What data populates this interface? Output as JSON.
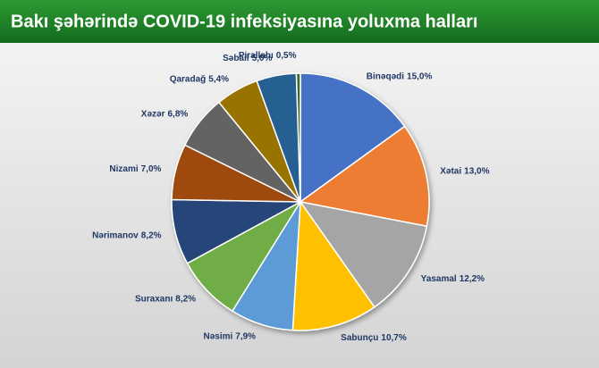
{
  "chart_data": {
    "type": "pie",
    "title": "Bakı şəhərində COVID-19 infeksiyasına yoluxma halları",
    "categories": [
      "Binəqədi",
      "Xətai",
      "Yasamal",
      "Sabunçu",
      "Nəsimi",
      "Suraxanı",
      "Nərimanov",
      "Nizami",
      "Xəzər",
      "Qaradağ",
      "Səbail",
      "Pirallahı"
    ],
    "values": [
      15.0,
      13.0,
      12.2,
      10.7,
      7.9,
      8.2,
      8.2,
      7.0,
      6.8,
      5.4,
      5.0,
      0.5
    ],
    "value_labels": [
      "15,0%",
      "13,0%",
      "12,2%",
      "10,7%",
      "7,9%",
      "8,2%",
      "8,2%",
      "7,0%",
      "6,8%",
      "5,4%",
      "5,0%",
      "0,5%"
    ],
    "colors": [
      "#4472c4",
      "#ed7d31",
      "#a5a5a5",
      "#ffc000",
      "#5b9bd5",
      "#70ad47",
      "#264478",
      "#9e480e",
      "#636363",
      "#997300",
      "#255e91",
      "#43682b"
    ]
  }
}
